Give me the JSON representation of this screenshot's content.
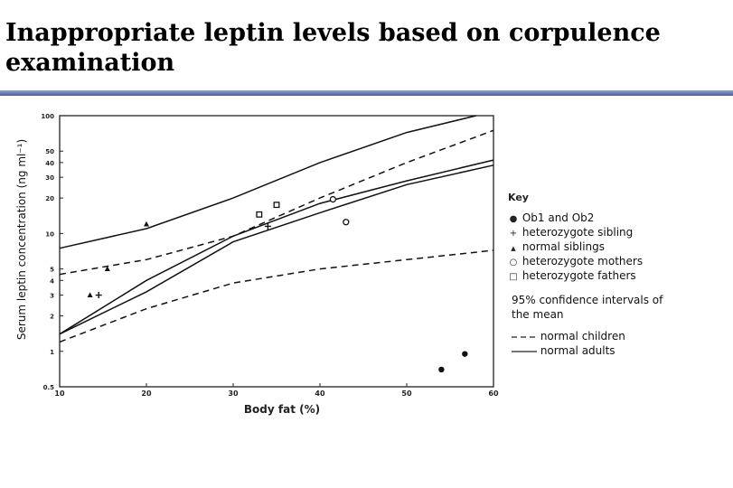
{
  "title": "Inappropriate leptin levels based on corpulence examination",
  "key": {
    "heading": "Key",
    "items": [
      {
        "symbol": "●",
        "label": "Ob1 and Ob2"
      },
      {
        "symbol": "+",
        "label": "heterozygote sibling"
      },
      {
        "symbol": "▲",
        "label": "normal siblings"
      },
      {
        "symbol": "○",
        "label": "heterozygote mothers"
      },
      {
        "symbol": "□",
        "label": "heterozygote fathers"
      }
    ],
    "ci_heading": "95% confidence intervals of the mean",
    "lines": [
      {
        "style": "dashed",
        "label": "normal children"
      },
      {
        "style": "solid",
        "label": "normal adults"
      }
    ]
  },
  "chart_data": {
    "type": "scatter",
    "xlabel": "Body fat (%)",
    "ylabel": "Serum leptin concentration (ng ml⁻¹)",
    "xlim": [
      10,
      60
    ],
    "ylim": [
      0.5,
      100
    ],
    "yscale": "log",
    "xticks": [
      10,
      20,
      30,
      40,
      50,
      60
    ],
    "yticks": [
      0.5,
      1,
      2,
      3,
      4,
      5,
      10,
      20,
      30,
      40,
      50,
      100
    ],
    "series": [
      {
        "name": "Ob1 and Ob2",
        "marker": "filled-circle",
        "points": [
          [
            54,
            0.7
          ],
          [
            56.7,
            0.95
          ]
        ]
      },
      {
        "name": "heterozygote sibling",
        "marker": "plus",
        "points": [
          [
            14.5,
            3
          ],
          [
            34,
            11.5
          ]
        ]
      },
      {
        "name": "normal siblings",
        "marker": "triangle",
        "points": [
          [
            13.5,
            3
          ],
          [
            15.5,
            5
          ],
          [
            20,
            12
          ]
        ]
      },
      {
        "name": "heterozygote mothers",
        "marker": "open-circle",
        "points": [
          [
            41.5,
            19.5
          ],
          [
            43,
            12.5
          ]
        ]
      },
      {
        "name": "heterozygote fathers",
        "marker": "open-square",
        "points": [
          [
            33,
            14.5
          ],
          [
            35,
            17.5
          ]
        ]
      }
    ],
    "lines": [
      {
        "name": "normal adults",
        "style": "solid",
        "points": [
          [
            10,
            1.4
          ],
          [
            20,
            3.2
          ],
          [
            30,
            8.5
          ],
          [
            40,
            15
          ],
          [
            50,
            26
          ],
          [
            60,
            38
          ]
        ]
      },
      {
        "name": "normal adults",
        "style": "solid",
        "points": [
          [
            10,
            7.5
          ],
          [
            20,
            11
          ],
          [
            30,
            20
          ],
          [
            40,
            40
          ],
          [
            50,
            72
          ],
          [
            58,
            100
          ]
        ]
      },
      {
        "name": "normal adults",
        "style": "solid",
        "points": [
          [
            10,
            1.4
          ],
          [
            20,
            4
          ],
          [
            30,
            9.5
          ],
          [
            40,
            18
          ],
          [
            50,
            28
          ],
          [
            60,
            42
          ]
        ]
      },
      {
        "name": "normal children",
        "style": "dashed",
        "points": [
          [
            10,
            4.5
          ],
          [
            20,
            6
          ],
          [
            30,
            9.5
          ],
          [
            40,
            20
          ],
          [
            50,
            40
          ],
          [
            60,
            75
          ]
        ]
      },
      {
        "name": "normal children",
        "style": "dashed",
        "points": [
          [
            10,
            1.2
          ],
          [
            20,
            2.3
          ],
          [
            30,
            3.8
          ],
          [
            40,
            5
          ],
          [
            50,
            6
          ],
          [
            60,
            7.2
          ]
        ]
      }
    ]
  }
}
